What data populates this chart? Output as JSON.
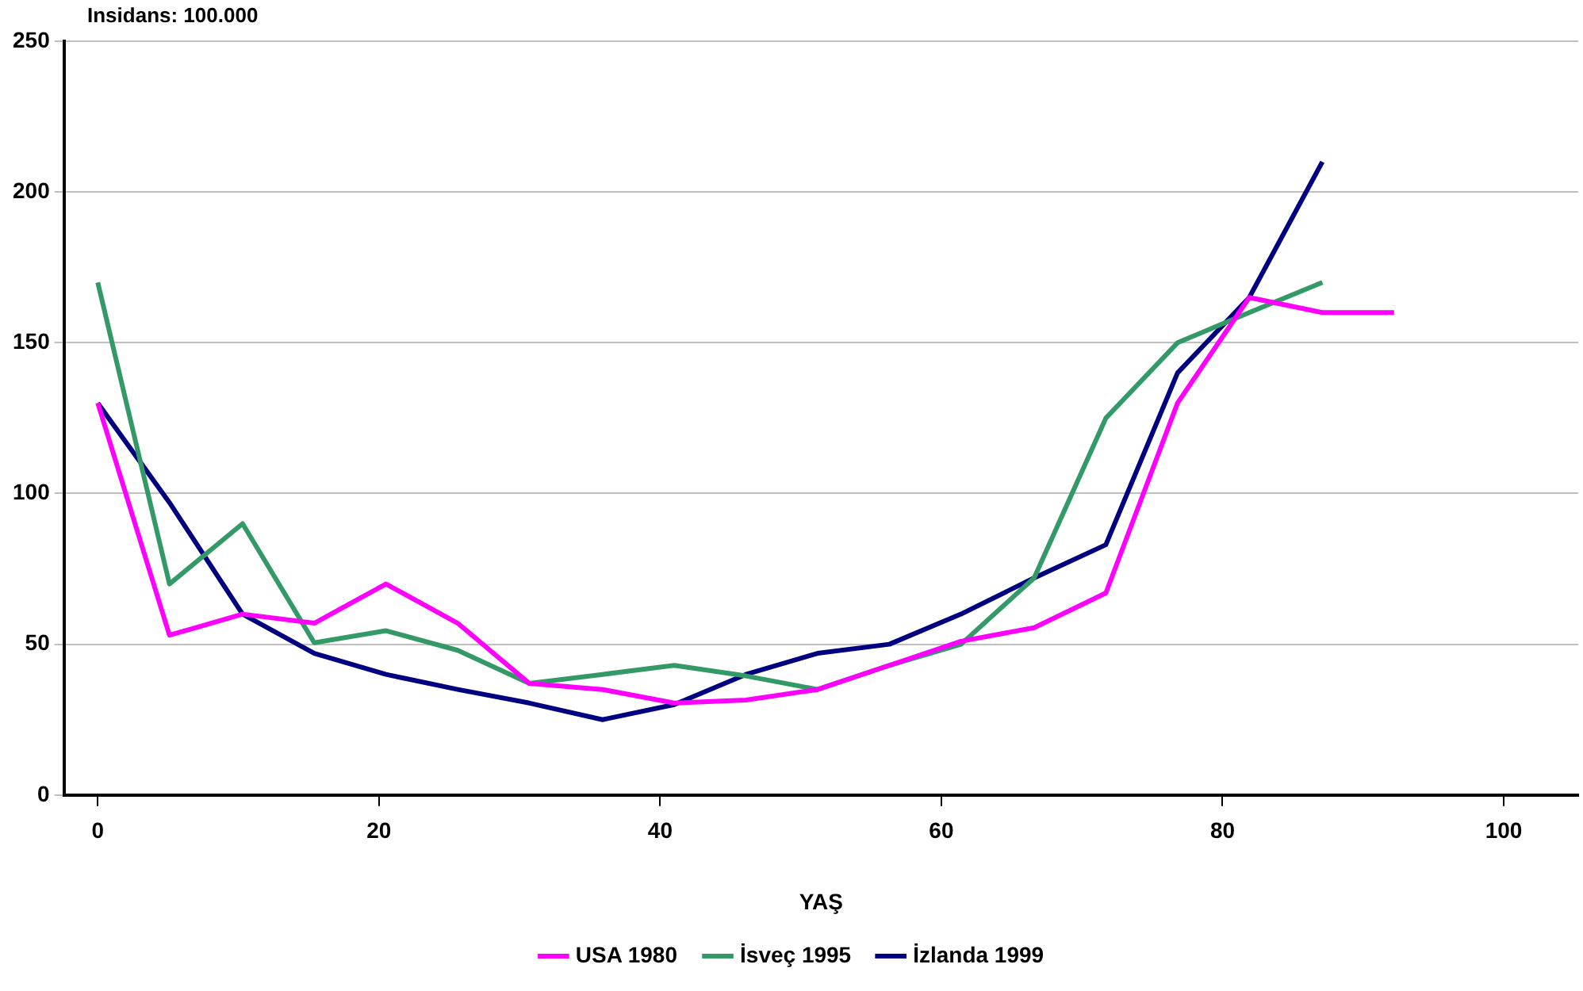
{
  "chart_data": {
    "type": "line",
    "ylabel": "Insidans: 100.000",
    "xlabel": "YAŞ",
    "xlim": [
      -2.4,
      105.3
    ],
    "xticks": [
      0,
      20,
      40,
      60,
      80,
      100
    ],
    "ylim": [
      0,
      250
    ],
    "yticks": [
      0,
      50,
      100,
      150,
      200,
      250
    ],
    "grid": "y",
    "legend": "bottom",
    "marker": "none",
    "line_style": "solid",
    "series": [
      {
        "name": "USA 1980",
        "color": "#ff00ff",
        "x": [
          0,
          5.1,
          10.3,
          15.4,
          20.5,
          25.6,
          30.7,
          35.9,
          41,
          46.1,
          51.2,
          56.3,
          61.4,
          66.6,
          71.7,
          76.8,
          81.9,
          87.1,
          92.2
        ],
        "values": [
          130,
          53,
          60,
          57,
          70,
          57,
          37,
          35,
          30.5,
          31.5,
          35,
          43,
          51,
          55.5,
          67,
          130,
          165,
          160,
          160
        ]
      },
      {
        "name": "İsveç 1995",
        "color": "#339966",
        "x": [
          0,
          5.1,
          10.3,
          15.4,
          20.5,
          25.6,
          30.7,
          35.9,
          41,
          46.1,
          51.2,
          56.3,
          61.4,
          66.6,
          71.7,
          76.8,
          81.9,
          87.1
        ],
        "values": [
          170,
          70,
          90,
          50.5,
          54.5,
          48,
          37,
          40,
          43,
          39.5,
          35,
          43,
          50,
          72,
          125,
          150,
          160,
          170
        ]
      },
      {
        "name": "İzlanda 1999",
        "color": "#000080",
        "x": [
          0,
          5.1,
          10.3,
          15.4,
          20.5,
          25.6,
          30.7,
          35.9,
          41,
          46.1,
          51.2,
          56.3,
          61.4,
          66.6,
          71.7,
          76.8,
          81.9,
          87.1
        ],
        "values": [
          130,
          97,
          60,
          47,
          40,
          35,
          30.5,
          25,
          30,
          40,
          47,
          50,
          60,
          72,
          83,
          140,
          165,
          210
        ]
      }
    ]
  }
}
